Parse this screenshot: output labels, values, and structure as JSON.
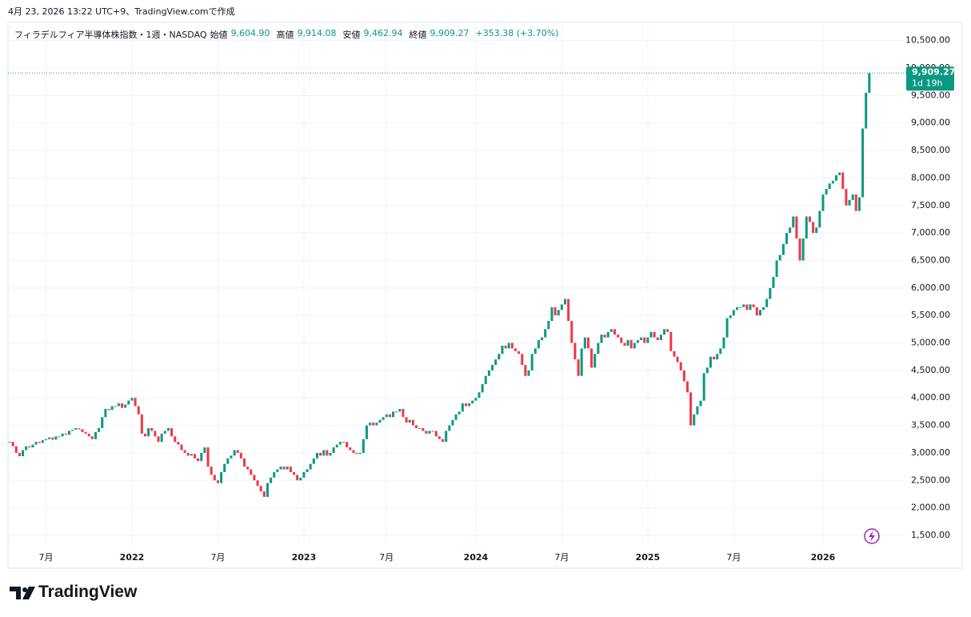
{
  "header": {
    "created": "4月 23, 2026 13:22 UTC+9、TradingView.comで作成"
  },
  "footer": {
    "brand": "TradingView"
  },
  "chart_data": {
    "type": "candlestick",
    "title": "フィラデルフィア半導体株指数・1週・NASDAQ",
    "legend": {
      "open_label": "始値",
      "open": "9,604.90",
      "high_label": "高値",
      "high": "9,914.08",
      "low_label": "安値",
      "low": "9,462.94",
      "close_label": "終値",
      "close": "9,909.27",
      "change": "+353.38 (+3.70%)"
    },
    "up_color": "#089981",
    "down_color": "#f23645",
    "values": [
      3200,
      3120,
      3000,
      2940,
      3050,
      3120,
      3100,
      3150,
      3200,
      3180,
      3230,
      3250,
      3280,
      3240,
      3300,
      3300,
      3350,
      3330,
      3400,
      3420,
      3450,
      3430,
      3380,
      3350,
      3300,
      3250,
      3380,
      3450,
      3650,
      3800,
      3780,
      3850,
      3850,
      3900,
      3820,
      3880,
      3950,
      4000,
      3850,
      3700,
      3350,
      3300,
      3450,
      3400,
      3300,
      3200,
      3350,
      3400,
      3450,
      3300,
      3200,
      3150,
      3050,
      3000,
      2950,
      2980,
      2900,
      2850,
      3000,
      3100,
      2750,
      2600,
      2500,
      2450,
      2650,
      2800,
      2900,
      2950,
      3050,
      3000,
      2900,
      2750,
      2700,
      2600,
      2500,
      2400,
      2300,
      2200,
      2450,
      2550,
      2650,
      2700,
      2750,
      2700,
      2750,
      2650,
      2600,
      2500,
      2550,
      2650,
      2700,
      2800,
      2900,
      3000,
      2950,
      3050,
      2950,
      3000,
      3100,
      3150,
      3200,
      3200,
      3100,
      3050,
      3000,
      2980,
      3000,
      3250,
      3500,
      3550,
      3500,
      3550,
      3600,
      3650,
      3700,
      3650,
      3750,
      3750,
      3800,
      3650,
      3550,
      3600,
      3500,
      3450,
      3450,
      3400,
      3350,
      3400,
      3400,
      3300,
      3250,
      3200,
      3400,
      3500,
      3600,
      3700,
      3750,
      3900,
      3850,
      3900,
      3950,
      4000,
      4100,
      4250,
      4400,
      4500,
      4600,
      4700,
      4800,
      4950,
      4900,
      5000,
      4900,
      4850,
      4800,
      4600,
      4400,
      4500,
      4800,
      4900,
      5050,
      5100,
      5250,
      5400,
      5650,
      5500,
      5600,
      5700,
      5800,
      5400,
      5000,
      4700,
      4400,
      4900,
      5100,
      4900,
      4550,
      4800,
      5000,
      5150,
      5100,
      5200,
      5250,
      5150,
      5100,
      5000,
      4950,
      5050,
      4900,
      5000,
      5050,
      5100,
      5000,
      5100,
      5200,
      5100,
      5050,
      5150,
      5250,
      5200,
      4850,
      4750,
      4650,
      4500,
      4300,
      4100,
      3500,
      3700,
      3850,
      3950,
      4450,
      4550,
      4750,
      4700,
      4800,
      4900,
      5100,
      5450,
      5500,
      5600,
      5650,
      5650,
      5700,
      5600,
      5700,
      5650,
      5500,
      5600,
      5650,
      5800,
      6000,
      6200,
      6500,
      6600,
      6800,
      7000,
      7100,
      7300,
      6900,
      6500,
      6900,
      7300,
      7200,
      7000,
      7100,
      7400,
      7700,
      7800,
      7900,
      7950,
      8050,
      8100,
      7800,
      7500,
      7600,
      7700,
      7400,
      7650,
      8900,
      9550,
      9909.27
    ],
    "last_price_label": "9,909.27",
    "countdown": "1d 19h",
    "ylim": [
      1310,
      10830
    ],
    "yticks": [
      {
        "value": 1500,
        "label": "1,500.00"
      },
      {
        "value": 2000,
        "label": "2,000.00"
      },
      {
        "value": 2500,
        "label": "2,500.00"
      },
      {
        "value": 3000,
        "label": "3,000.00"
      },
      {
        "value": 3500,
        "label": "3,500.00"
      },
      {
        "value": 4000,
        "label": "4,000.00"
      },
      {
        "value": 4500,
        "label": "4,500.00"
      },
      {
        "value": 5000,
        "label": "5,000.00"
      },
      {
        "value": 5500,
        "label": "5,500.00"
      },
      {
        "value": 6000,
        "label": "6,000.00"
      },
      {
        "value": 6500,
        "label": "6,500.00"
      },
      {
        "value": 7000,
        "label": "7,000.00"
      },
      {
        "value": 7500,
        "label": "7,500.00"
      },
      {
        "value": 8000,
        "label": "8,000.00"
      },
      {
        "value": 8500,
        "label": "8,500.00"
      },
      {
        "value": 9000,
        "label": "9,000.00"
      },
      {
        "value": 9500,
        "label": "9,500.00"
      },
      {
        "value": 10000,
        "label": "10,000.00"
      },
      {
        "value": 10500,
        "label": "10,500.00"
      }
    ],
    "xticks": [
      {
        "value": 11,
        "label": "7月"
      },
      {
        "value": 37,
        "label": "2022"
      },
      {
        "value": 63,
        "label": "7月"
      },
      {
        "value": 89,
        "label": "2023"
      },
      {
        "value": 114,
        "label": "7月"
      },
      {
        "value": 141,
        "label": "2024"
      },
      {
        "value": 167,
        "label": "7月"
      },
      {
        "value": 193,
        "label": "2025"
      },
      {
        "value": 219,
        "label": "7月"
      },
      {
        "value": 246,
        "label": "2026"
      }
    ],
    "grid": true
  }
}
